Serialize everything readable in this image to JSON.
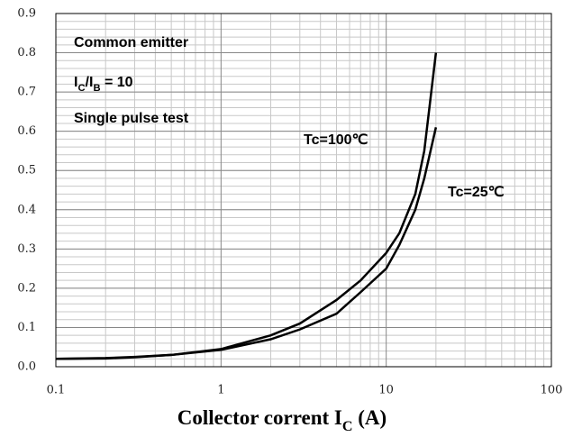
{
  "chart_data": {
    "type": "line",
    "annotations": [
      "Common emitter",
      [
        "I",
        "C",
        "/I",
        "B",
        " = 10"
      ],
      "Single pulse test"
    ],
    "xlabel": [
      "Collector corrent I",
      "C",
      " (A)"
    ],
    "x": [
      0.1,
      0.2,
      0.3,
      0.5,
      1,
      2,
      3,
      5,
      7,
      10,
      12,
      15,
      17,
      20
    ],
    "series": [
      {
        "name": "Tc=100℃",
        "color": "#000000",
        "values": [
          0.02,
          0.022,
          0.025,
          0.03,
          0.045,
          0.08,
          0.11,
          0.17,
          0.22,
          0.29,
          0.34,
          0.44,
          0.55,
          0.8
        ]
      },
      {
        "name": "Tc=25℃",
        "color": "#000000",
        "values": [
          0.02,
          0.021,
          0.024,
          0.03,
          0.043,
          0.07,
          0.095,
          0.135,
          0.19,
          0.25,
          0.31,
          0.4,
          0.48,
          0.61
        ]
      }
    ],
    "xlim": [
      0.1,
      100
    ],
    "xticks": [
      0.1,
      1,
      10,
      100
    ],
    "xscale": "log",
    "ylim": [
      0,
      0.9
    ],
    "yticks": [
      {
        "value": 0,
        "label": "0.0"
      },
      0.1,
      0.2,
      0.3,
      0.4,
      0.5,
      0.6,
      0.7,
      0.8,
      0.9
    ],
    "grid": true,
    "minor_grid": true
  }
}
